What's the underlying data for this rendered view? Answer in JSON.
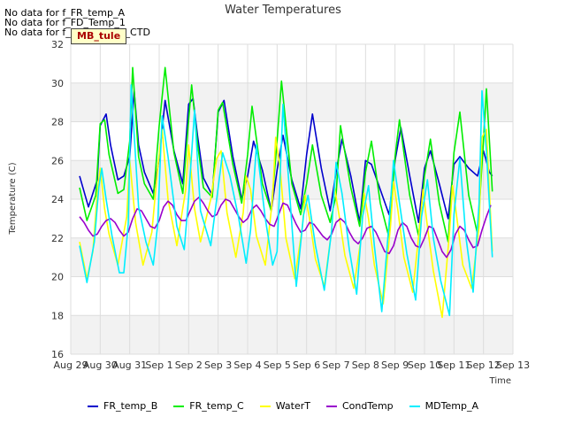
{
  "notices": [
    "No data for f_FR_temp_A",
    "No data for f_FD_Temp_1",
    "No data for f_WaterTemp_CTD"
  ],
  "tag_label": "MB_tule",
  "chart_data": {
    "type": "line",
    "title": "Water Temperatures",
    "xlabel": "Time",
    "ylabel": "Temperature (C)",
    "ylim": [
      16,
      32
    ],
    "yticks": [
      16,
      18,
      20,
      22,
      24,
      26,
      28,
      30,
      32
    ],
    "xlim": [
      0,
      15
    ],
    "xtick_labels": [
      "Aug 29",
      "Aug 30",
      "Aug 31",
      "Sep 1",
      "Sep 2",
      "Sep 3",
      "Sep 4",
      "Sep 5",
      "Sep 6",
      "Sep 7",
      "Sep 8",
      "Sep 9",
      "Sep 10",
      "Sep 11",
      "Sep 12",
      "Sep 13"
    ],
    "grid": true,
    "legend_position": "bottom",
    "series": [
      {
        "name": "FR_temp_B",
        "color": "#0000cc",
        "x": [
          0.3,
          0.6,
          0.9,
          1.0,
          1.2,
          1.35,
          1.6,
          1.8,
          2.0,
          2.15,
          2.3,
          2.5,
          2.8,
          3.0,
          3.2,
          3.5,
          3.8,
          4.0,
          4.15,
          4.3,
          4.5,
          4.8,
          5.0,
          5.2,
          5.5,
          5.8,
          6.0,
          6.2,
          6.5,
          6.8,
          7.0,
          7.2,
          7.5,
          7.8,
          8.0,
          8.2,
          8.5,
          8.8,
          9.0,
          9.2,
          9.5,
          9.8,
          10.0,
          10.2,
          10.5,
          10.8,
          11.0,
          11.2,
          11.5,
          11.8,
          12.0,
          12.2,
          12.5,
          12.8,
          13.0,
          13.2,
          13.5,
          13.8,
          14.0,
          14.2,
          14.3
        ],
        "y": [
          25.2,
          23.6,
          25.0,
          27.8,
          28.4,
          26.8,
          25.0,
          25.2,
          26.2,
          29.6,
          26.8,
          25.4,
          24.3,
          26.1,
          29.1,
          26.5,
          24.8,
          28.9,
          29.2,
          27.3,
          25.1,
          24.2,
          28.5,
          29.1,
          26.2,
          24.0,
          25.2,
          27.0,
          25.5,
          23.4,
          25.5,
          27.3,
          25.0,
          23.5,
          26.3,
          28.4,
          25.6,
          23.4,
          25.4,
          27.1,
          25.2,
          22.8,
          26.0,
          25.8,
          24.5,
          23.2,
          26.0,
          27.7,
          25.2,
          22.8,
          25.6,
          26.5,
          24.8,
          23.0,
          25.8,
          26.2,
          25.6,
          25.2,
          26.5,
          25.4,
          25.2
        ]
      },
      {
        "name": "FR_temp_C",
        "color": "#00ee00",
        "x": [
          0.3,
          0.55,
          0.85,
          1.0,
          1.15,
          1.3,
          1.6,
          1.8,
          2.0,
          2.1,
          2.3,
          2.5,
          2.8,
          3.0,
          3.2,
          3.5,
          3.8,
          4.0,
          4.1,
          4.3,
          4.5,
          4.8,
          5.0,
          5.15,
          5.5,
          5.8,
          6.0,
          6.15,
          6.5,
          6.8,
          7.0,
          7.15,
          7.5,
          7.8,
          8.0,
          8.2,
          8.5,
          8.8,
          9.0,
          9.15,
          9.5,
          9.8,
          10.0,
          10.2,
          10.5,
          10.8,
          11.0,
          11.15,
          11.5,
          11.8,
          12.0,
          12.2,
          12.5,
          12.8,
          13.0,
          13.2,
          13.5,
          13.8,
          14.0,
          14.1,
          14.3
        ],
        "y": [
          24.6,
          22.9,
          24.2,
          27.9,
          28.1,
          26.3,
          24.3,
          24.5,
          27.0,
          30.8,
          26.2,
          24.8,
          24.0,
          27.8,
          30.8,
          26.4,
          24.3,
          28.1,
          29.9,
          26.9,
          24.6,
          24.1,
          28.6,
          29.0,
          25.8,
          23.8,
          26.3,
          28.8,
          24.8,
          23.4,
          27.0,
          30.1,
          24.8,
          23.2,
          24.8,
          26.8,
          24.2,
          22.8,
          24.2,
          27.8,
          24.6,
          22.6,
          25.4,
          27.0,
          23.8,
          22.0,
          26.2,
          28.1,
          24.2,
          22.1,
          25.2,
          27.1,
          23.8,
          21.8,
          26.4,
          28.5,
          24.2,
          22.2,
          27.0,
          29.7,
          24.4
        ]
      },
      {
        "name": "WaterT",
        "color": "#ffff00",
        "x": [
          0.3,
          0.55,
          0.75,
          0.9,
          1.0,
          1.15,
          1.3,
          1.6,
          1.9,
          2.0,
          2.2,
          2.45,
          2.75,
          2.95,
          3.1,
          3.3,
          3.6,
          3.9,
          4.0,
          4.2,
          4.4,
          4.75,
          4.95,
          5.1,
          5.3,
          5.6,
          5.85,
          5.95,
          6.1,
          6.3,
          6.6,
          6.85,
          6.95,
          7.1,
          7.3,
          7.6,
          7.85,
          7.95,
          8.1,
          8.3,
          8.6,
          8.85,
          8.95,
          9.1,
          9.3,
          9.6,
          9.85,
          9.95,
          10.1,
          10.3,
          10.6,
          10.85,
          10.95,
          11.1,
          11.3,
          11.6,
          11.85,
          11.95,
          12.1,
          12.3,
          12.6,
          12.85,
          12.95,
          13.1,
          13.3,
          13.6,
          13.85,
          13.95,
          14.1,
          14.3
        ],
        "y": [
          21.8,
          19.9,
          21.3,
          24.3,
          25.6,
          23.5,
          22.2,
          20.6,
          23.1,
          26.0,
          22.8,
          20.6,
          22.3,
          25.6,
          27.6,
          24.0,
          21.6,
          24.5,
          26.8,
          23.5,
          21.8,
          24.0,
          26.1,
          26.5,
          23.3,
          21.0,
          23.3,
          25.2,
          24.5,
          22.1,
          20.6,
          24.1,
          27.2,
          25.6,
          22.0,
          19.9,
          22.5,
          24.2,
          23.0,
          20.9,
          19.5,
          22.4,
          24.6,
          23.2,
          21.1,
          19.4,
          22.0,
          24.3,
          23.0,
          20.6,
          18.6,
          22.7,
          24.9,
          23.4,
          21.0,
          19.2,
          22.8,
          24.5,
          22.6,
          20.3,
          17.9,
          22.3,
          24.7,
          23.0,
          20.6,
          19.4,
          22.6,
          27.2,
          27.6,
          21.3
        ]
      },
      {
        "name": "CondTemp",
        "color": "#9900cc",
        "x": [
          0.3,
          0.45,
          0.6,
          0.75,
          0.9,
          1.05,
          1.2,
          1.35,
          1.5,
          1.65,
          1.8,
          1.95,
          2.1,
          2.25,
          2.4,
          2.55,
          2.7,
          2.85,
          3.0,
          3.15,
          3.3,
          3.45,
          3.6,
          3.75,
          3.9,
          4.05,
          4.2,
          4.35,
          4.5,
          4.65,
          4.8,
          4.95,
          5.1,
          5.25,
          5.4,
          5.55,
          5.7,
          5.85,
          6.0,
          6.15,
          6.3,
          6.45,
          6.6,
          6.75,
          6.9,
          7.05,
          7.2,
          7.35,
          7.5,
          7.65,
          7.8,
          7.95,
          8.1,
          8.25,
          8.4,
          8.55,
          8.7,
          8.85,
          9.0,
          9.15,
          9.3,
          9.45,
          9.6,
          9.75,
          9.9,
          10.05,
          10.2,
          10.35,
          10.5,
          10.65,
          10.8,
          10.95,
          11.1,
          11.25,
          11.4,
          11.55,
          11.7,
          11.85,
          12.0,
          12.15,
          12.3,
          12.45,
          12.6,
          12.75,
          12.9,
          13.05,
          13.2,
          13.35,
          13.5,
          13.65,
          13.8,
          13.95,
          14.1,
          14.25
        ],
        "y": [
          23.1,
          22.8,
          22.4,
          22.1,
          22.2,
          22.6,
          22.9,
          23.0,
          22.8,
          22.4,
          22.1,
          22.3,
          23.0,
          23.5,
          23.4,
          23.0,
          22.6,
          22.5,
          22.9,
          23.6,
          23.9,
          23.7,
          23.2,
          22.9,
          22.9,
          23.4,
          23.9,
          24.1,
          23.8,
          23.4,
          23.1,
          23.2,
          23.7,
          24.0,
          23.9,
          23.5,
          23.1,
          22.8,
          23.0,
          23.5,
          23.7,
          23.4,
          23.0,
          22.7,
          22.6,
          23.2,
          23.8,
          23.7,
          23.2,
          22.7,
          22.3,
          22.4,
          22.8,
          22.7,
          22.4,
          22.1,
          21.9,
          22.2,
          22.8,
          23.0,
          22.8,
          22.3,
          21.9,
          21.7,
          22.0,
          22.5,
          22.6,
          22.3,
          21.8,
          21.3,
          21.2,
          21.6,
          22.4,
          22.8,
          22.6,
          22.0,
          21.6,
          21.5,
          22.0,
          22.6,
          22.5,
          21.9,
          21.3,
          21.0,
          21.4,
          22.2,
          22.6,
          22.4,
          21.9,
          21.5,
          21.6,
          22.4,
          23.1,
          23.7
        ]
      },
      {
        "name": "MDTemp_A",
        "color": "#00eeff",
        "x": [
          0.3,
          0.55,
          0.8,
          0.95,
          1.05,
          1.2,
          1.4,
          1.65,
          1.8,
          1.95,
          2.05,
          2.3,
          2.55,
          2.8,
          2.95,
          3.1,
          3.3,
          3.6,
          3.85,
          4.0,
          4.2,
          4.4,
          4.75,
          5.0,
          5.15,
          5.4,
          5.7,
          5.95,
          6.1,
          6.3,
          6.6,
          6.85,
          7.0,
          7.2,
          7.4,
          7.65,
          7.9,
          8.05,
          8.3,
          8.6,
          8.85,
          9.0,
          9.2,
          9.45,
          9.7,
          9.9,
          10.1,
          10.3,
          10.55,
          10.8,
          10.95,
          11.15,
          11.4,
          11.7,
          11.9,
          12.1,
          12.3,
          12.55,
          12.85,
          13.0,
          13.2,
          13.4,
          13.65,
          13.85,
          13.95,
          14.1,
          14.3
        ],
        "y": [
          21.6,
          19.7,
          21.8,
          24.6,
          25.6,
          24.0,
          22.1,
          20.2,
          20.2,
          22.7,
          29.9,
          23.6,
          21.8,
          20.6,
          22.7,
          28.3,
          26.2,
          22.6,
          21.4,
          24.1,
          28.6,
          23.4,
          21.6,
          24.6,
          26.4,
          25.2,
          23.0,
          20.7,
          22.4,
          26.8,
          23.0,
          20.6,
          21.3,
          28.9,
          24.8,
          19.5,
          23.2,
          24.2,
          21.6,
          19.3,
          22.4,
          25.9,
          24.3,
          21.4,
          19.1,
          23.1,
          24.7,
          21.6,
          18.2,
          22.8,
          26.0,
          23.8,
          21.2,
          18.8,
          23.1,
          25.0,
          22.0,
          19.8,
          18.0,
          23.2,
          26.1,
          22.1,
          19.2,
          23.8,
          29.6,
          26.5,
          21.0
        ]
      }
    ]
  }
}
